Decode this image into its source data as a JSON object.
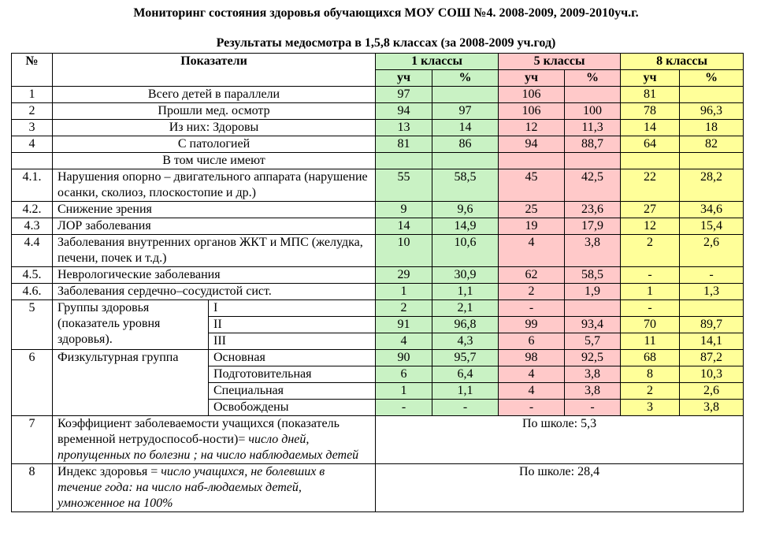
{
  "header": {
    "title": "Мониторинг состояния  здоровья обучающихся МОУ СОШ №4. 2008-2009, 2009-2010уч.г.",
    "subtitle": "Результаты медосмотра в 1,5,8 классах (за 2008-2009 уч.год)"
  },
  "table": {
    "head": {
      "num": "№",
      "indicator": "Показатели",
      "groups": [
        "1 классы",
        "5 классы",
        "8 классы"
      ],
      "sub": [
        "уч",
        "%",
        "уч",
        "%",
        "уч",
        "%"
      ]
    },
    "rows": [
      {
        "num": "1",
        "label": "Всего детей в параллели",
        "values": [
          "97",
          null,
          "106",
          null,
          "81",
          null
        ]
      },
      {
        "num": "2",
        "label": "Прошли мед. осмотр",
        "values": [
          "94",
          "97",
          "106",
          "100",
          "78",
          "96,3"
        ]
      },
      {
        "num": "3",
        "label": "Из них: Здоровы",
        "values": [
          "13",
          "14",
          "12",
          "11,3",
          "14",
          "18"
        ]
      },
      {
        "num": "4",
        "label": "С патологией",
        "values": [
          "81",
          "86",
          "94",
          "88,7",
          "64",
          "82"
        ]
      },
      {
        "label": "В том числе имеют"
      },
      {
        "num": "4.1.",
        "label": "Нарушения опорно – двигательного аппарата (нарушение осанки, сколиоз, плоскостопие и др.)",
        "values": [
          "55",
          "58,5",
          "45",
          "42,5",
          "22",
          "28,2"
        ]
      },
      {
        "num": "4.2.",
        "label": "Снижение зрения",
        "values": [
          "9",
          "9,6",
          "25",
          "23,6",
          "27",
          "34,6"
        ]
      },
      {
        "num": "4.3",
        "label": "ЛОР заболевания",
        "values": [
          "14",
          "14,9",
          "19",
          "17,9",
          "12",
          "15,4"
        ]
      },
      {
        "num": "4.4",
        "label": "Заболевания внутренних органов ЖКТ и МПС (желудка, печени, почек и т.д.)",
        "values": [
          "10",
          "10,6",
          "4",
          "3,8",
          "2",
          "2,6"
        ]
      },
      {
        "num": "4.5.",
        "label": "Неврологические заболевания",
        "values": [
          "29",
          "30,9",
          "62",
          "58,5",
          "-",
          "-"
        ]
      },
      {
        "num": "4.6.",
        "label": "Заболевания сердечно–сосудистой сист.",
        "values": [
          "1",
          "1,1",
          "2",
          "1,9",
          "1",
          "1,3"
        ]
      },
      {
        "num": "5",
        "label": "Группы здоровья (показатель уровня здоровья).",
        "subrows": [
          {
            "label": "I",
            "values": [
              "2",
              "2,1",
              "-",
              null,
              "-",
              null
            ]
          },
          {
            "label": "II",
            "values": [
              "91",
              "96,8",
              "99",
              "93,4",
              "70",
              "89,7"
            ]
          },
          {
            "label": "III",
            "values": [
              "4",
              "4,3",
              "6",
              "5,7",
              "11",
              "14,1"
            ]
          }
        ]
      },
      {
        "num": "6",
        "label": "Физкультурная группа",
        "subrows": [
          {
            "label": "Основная",
            "values": [
              "90",
              "95,7",
              "98",
              "92,5",
              "68",
              "87,2"
            ]
          },
          {
            "label": "Подготовительная",
            "values": [
              "6",
              "6,4",
              "4",
              "3,8",
              "8",
              "10,3"
            ]
          },
          {
            "label": "Специальная",
            "values": [
              "1",
              "1,1",
              "4",
              "3,8",
              "2",
              "2,6"
            ]
          },
          {
            "label": "Освобождены",
            "values": [
              "-",
              "-",
              "-",
              "-",
              "3",
              "3,8"
            ]
          }
        ]
      },
      {
        "num": "7",
        "label": "Коэффициент заболеваемости учащихся (показатель временной нетрудоспособ-ности)= ",
        "label_italic": "число дней, пропущенных по болезни ; на число наблюдаемых детей",
        "note": "По школе: 5,3"
      },
      {
        "num": "8",
        "label": "Индекс здоровья = ",
        "label_italic": "число учащихся, не болевших в течение года: на число наб-людаемых детей, умноженное на 100%",
        "note": "По школе: 28,4"
      }
    ]
  }
}
